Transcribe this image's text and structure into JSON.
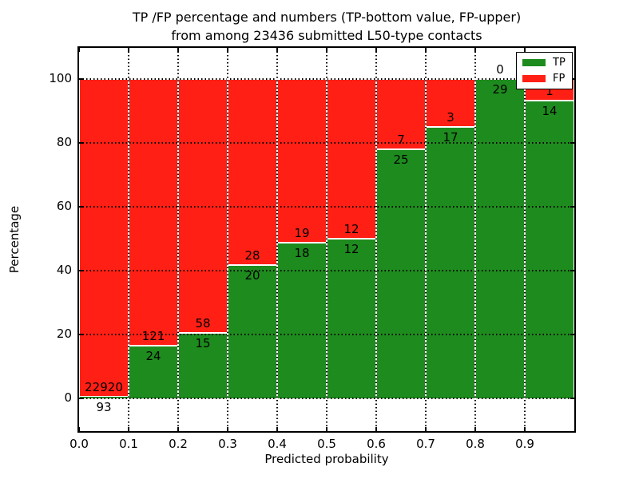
{
  "figure": {
    "title_line1": "TP /FP percentage and numbers (TP-bottom value, FP-upper)",
    "title_line2": "from among 23436 submitted L50-type contacts",
    "xlabel": "Predicted probability",
    "ylabel": "Percentage"
  },
  "legend": {
    "items": [
      {
        "label": "TP",
        "color": "#1e8b1e"
      },
      {
        "label": "FP",
        "color": "#ff1f15"
      }
    ]
  },
  "chart_data": {
    "type": "bar",
    "stacked": true,
    "normalized_to_percent": true,
    "title": "TP /FP percentage and numbers (TP-bottom value, FP-upper) from among 23436 submitted L50-type contacts",
    "xlabel": "Predicted probability",
    "ylabel": "Percentage",
    "total_submitted": 23436,
    "bins": [
      "0.0-0.1",
      "0.1-0.2",
      "0.2-0.3",
      "0.3-0.4",
      "0.4-0.5",
      "0.5-0.6",
      "0.6-0.7",
      "0.7-0.8",
      "0.8-0.9",
      "0.9-1.0"
    ],
    "series": [
      {
        "name": "TP",
        "color": "#1e8b1e",
        "counts": [
          93,
          24,
          15,
          20,
          18,
          12,
          25,
          17,
          29,
          14
        ]
      },
      {
        "name": "FP",
        "color": "#ff1f15",
        "counts": [
          22920,
          121,
          58,
          28,
          19,
          12,
          7,
          3,
          0,
          1
        ]
      }
    ],
    "tp_percent_of_bin": [
      0.4,
      16.6,
      20.5,
      41.7,
      48.6,
      50.0,
      78.1,
      85.0,
      100.0,
      93.3
    ],
    "xticks": [
      "0.0",
      "0.1",
      "0.2",
      "0.3",
      "0.4",
      "0.5",
      "0.6",
      "0.7",
      "0.8",
      "0.9"
    ],
    "yticks": [
      0,
      20,
      40,
      60,
      80,
      100
    ],
    "xlim": [
      0.0,
      1.0
    ],
    "ylim": [
      -10.25,
      109.75
    ],
    "grid": true,
    "grid_style": "dotted",
    "legend_position": "upper right"
  }
}
